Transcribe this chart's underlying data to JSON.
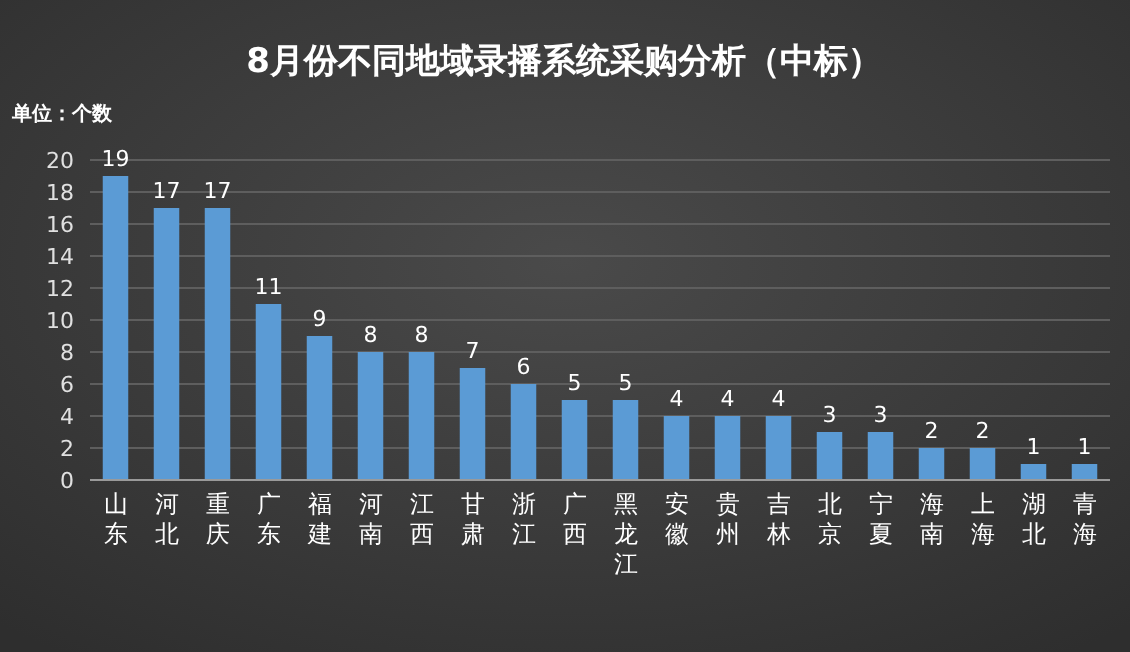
{
  "chart_data": {
    "type": "bar",
    "title": "8月份不同地域录播系统采购分析（中标）",
    "ylabel": "单位：个数",
    "categories": [
      "山东",
      "河北",
      "重庆",
      "广东",
      "福建",
      "河南",
      "江西",
      "甘肃",
      "浙江",
      "广西",
      "黑龙江",
      "安徽",
      "贵州",
      "吉林",
      "北京",
      "宁夏",
      "海南",
      "上海",
      "湖北",
      "青海"
    ],
    "values": [
      19,
      17,
      17,
      11,
      9,
      8,
      8,
      7,
      6,
      5,
      5,
      4,
      4,
      4,
      3,
      3,
      2,
      2,
      1,
      1
    ],
    "color": "#5b9bd5",
    "ylim": [
      0,
      20
    ],
    "yticks": [
      0,
      2,
      4,
      6,
      8,
      10,
      12,
      14,
      16,
      18,
      20
    ],
    "grid": "y",
    "data_labels": true
  }
}
